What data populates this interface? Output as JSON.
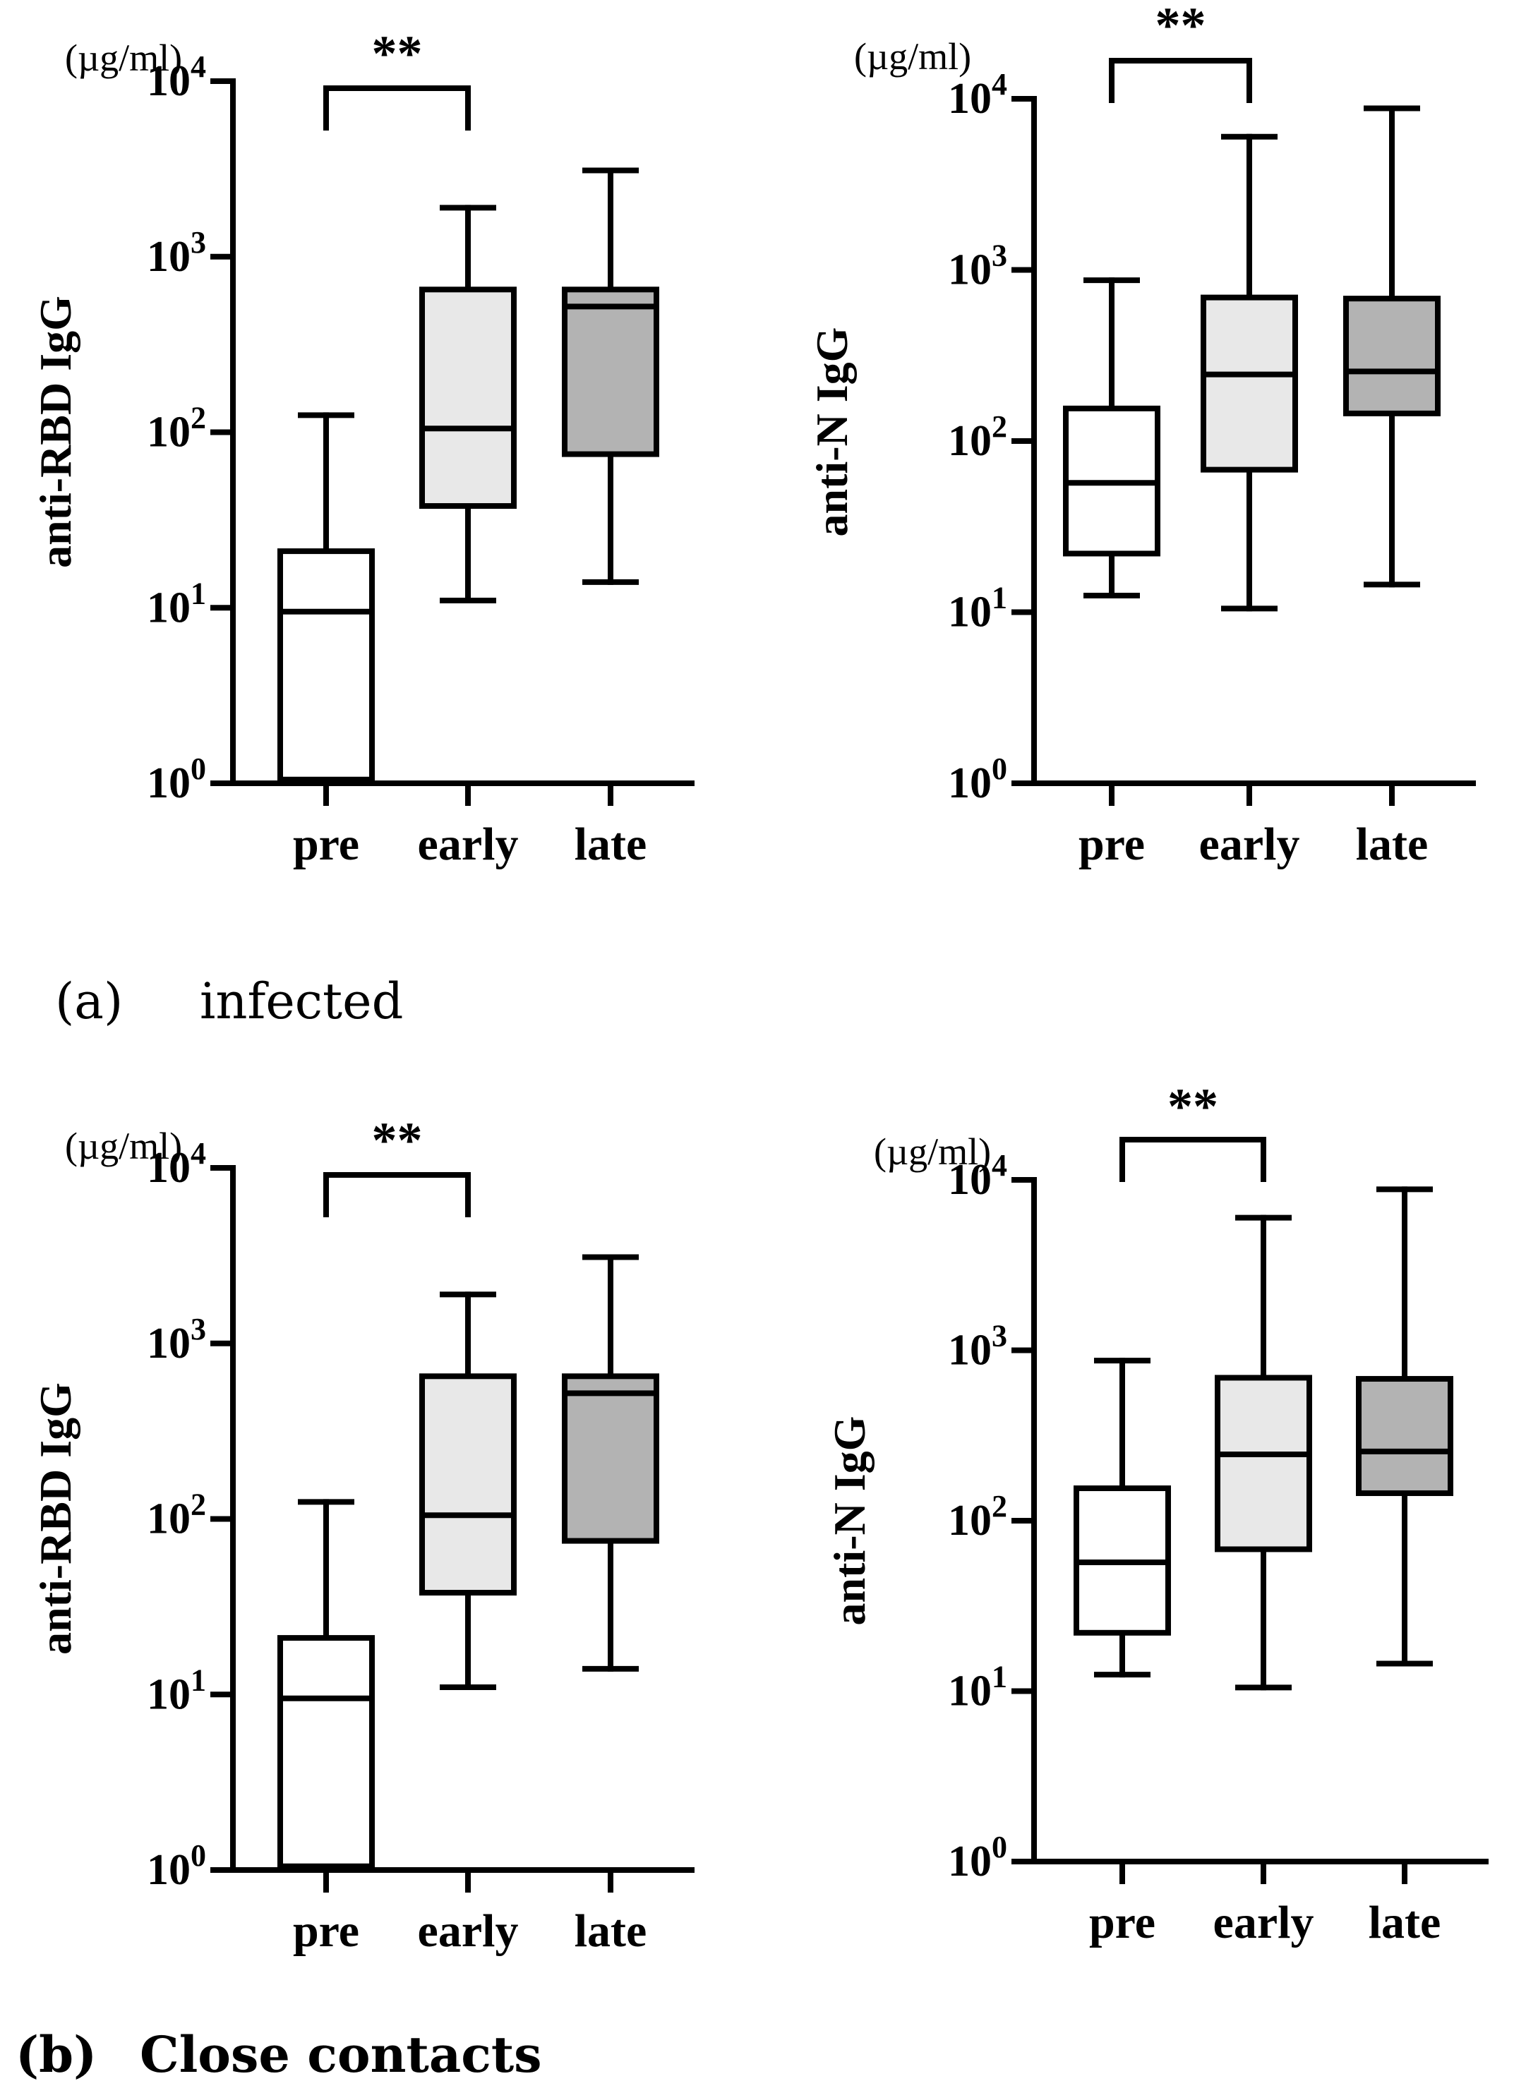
{
  "colors": {
    "axis": "#000000",
    "box_pre": "#ffffff",
    "box_early": "#e8e8e8",
    "box_late": "#b3b3b3"
  },
  "captions": [
    {
      "letter": "(a)",
      "label": "infected"
    },
    {
      "letter": "(b)",
      "label": "Close contacts"
    }
  ],
  "chart_data": [
    {
      "type": "box",
      "panel": "a-left",
      "unit_label": "(µg/ml)",
      "ylabel": "anti-RBD IgG",
      "yscale": "log10",
      "ylim": [
        1,
        10000
      ],
      "yticks": [
        {
          "base": "10",
          "exp": "0"
        },
        {
          "base": "10",
          "exp": "1"
        },
        {
          "base": "10",
          "exp": "2"
        },
        {
          "base": "10",
          "exp": "3"
        },
        {
          "base": "10",
          "exp": "4"
        }
      ],
      "categories": [
        "pre",
        "early",
        "late"
      ],
      "boxes": [
        {
          "group": "pre",
          "whisker_low": 1,
          "q1": 1.05,
          "median": 9.5,
          "q3": 21,
          "whisker_high": 125
        },
        {
          "group": "early",
          "whisker_low": 11,
          "q1": 38,
          "median": 105,
          "q3": 650,
          "whisker_high": 1900
        },
        {
          "group": "late",
          "whisker_low": 14,
          "q1": 75,
          "median": 520,
          "q3": 650,
          "whisker_high": 3100
        }
      ],
      "significance": {
        "from": "pre",
        "to": "early",
        "label": "**"
      }
    },
    {
      "type": "box",
      "panel": "a-right",
      "unit_label": "(µg/ml)",
      "ylabel": "anti-N IgG",
      "yscale": "log10",
      "ylim": [
        1,
        10000
      ],
      "yticks": [
        {
          "base": "10",
          "exp": "0"
        },
        {
          "base": "10",
          "exp": "1"
        },
        {
          "base": "10",
          "exp": "2"
        },
        {
          "base": "10",
          "exp": "3"
        },
        {
          "base": "10",
          "exp": "4"
        }
      ],
      "categories": [
        "pre",
        "early",
        "late"
      ],
      "boxes": [
        {
          "group": "pre",
          "whisker_low": 12.5,
          "q1": 22,
          "median": 57,
          "q3": 155,
          "whisker_high": 870
        },
        {
          "group": "early",
          "whisker_low": 10.5,
          "q1": 68,
          "median": 245,
          "q3": 690,
          "whisker_high": 6000
        },
        {
          "group": "late",
          "whisker_low": 14.5,
          "q1": 145,
          "median": 255,
          "q3": 680,
          "whisker_high": 8800
        }
      ],
      "significance": {
        "from": "pre",
        "to": "early",
        "label": "**"
      }
    },
    {
      "type": "box",
      "panel": "b-left",
      "unit_label": "(µg/ml)",
      "ylabel": "anti-RBD IgG",
      "yscale": "log10",
      "ylim": [
        1,
        10000
      ],
      "yticks": [
        {
          "base": "10",
          "exp": "0"
        },
        {
          "base": "10",
          "exp": "1"
        },
        {
          "base": "10",
          "exp": "2"
        },
        {
          "base": "10",
          "exp": "3"
        },
        {
          "base": "10",
          "exp": "4"
        }
      ],
      "categories": [
        "pre",
        "early",
        "late"
      ],
      "boxes": [
        {
          "group": "pre",
          "whisker_low": 1,
          "q1": 1.05,
          "median": 9.5,
          "q3": 21,
          "whisker_high": 125
        },
        {
          "group": "early",
          "whisker_low": 11,
          "q1": 38,
          "median": 105,
          "q3": 650,
          "whisker_high": 1900
        },
        {
          "group": "late",
          "whisker_low": 14,
          "q1": 75,
          "median": 520,
          "q3": 650,
          "whisker_high": 3100
        }
      ],
      "significance": {
        "from": "pre",
        "to": "early",
        "label": "**"
      }
    },
    {
      "type": "box",
      "panel": "b-right",
      "unit_label": "(µg/ml)",
      "ylabel": "anti-N IgG",
      "yscale": "log10",
      "ylim": [
        1,
        10000
      ],
      "yticks": [
        {
          "base": "10",
          "exp": "0"
        },
        {
          "base": "10",
          "exp": "1"
        },
        {
          "base": "10",
          "exp": "2"
        },
        {
          "base": "10",
          "exp": "3"
        },
        {
          "base": "10",
          "exp": "4"
        }
      ],
      "categories": [
        "pre",
        "early",
        "late"
      ],
      "boxes": [
        {
          "group": "pre",
          "whisker_low": 12.5,
          "q1": 22,
          "median": 57,
          "q3": 155,
          "whisker_high": 870
        },
        {
          "group": "early",
          "whisker_low": 10.5,
          "q1": 68,
          "median": 245,
          "q3": 690,
          "whisker_high": 6000
        },
        {
          "group": "late",
          "whisker_low": 14.5,
          "q1": 145,
          "median": 255,
          "q3": 680,
          "whisker_high": 8800
        }
      ],
      "significance": {
        "from": "pre",
        "to": "early",
        "label": "**"
      }
    }
  ]
}
